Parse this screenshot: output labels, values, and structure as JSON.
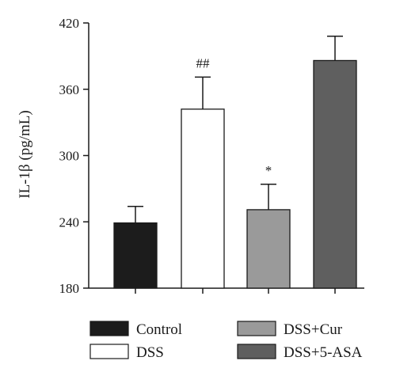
{
  "chart_data": {
    "type": "bar",
    "title": "",
    "xlabel": "",
    "ylabel": "IL-1β (pg/mL)",
    "ylim": [
      180,
      420
    ],
    "yticks": [
      180,
      240,
      300,
      360,
      420
    ],
    "categories": [
      "Control",
      "DSS",
      "DSS+Cur",
      "DSS+5-ASA"
    ],
    "values": [
      239,
      342,
      251,
      386
    ],
    "errors": [
      15,
      29,
      23,
      22
    ],
    "annotations": [
      "",
      "##",
      "*",
      ""
    ],
    "colors": [
      "#1c1c1c",
      "#ffffff",
      "#9a9a9a",
      "#5f5f5f"
    ],
    "grid": false,
    "legend_position": "bottom"
  }
}
